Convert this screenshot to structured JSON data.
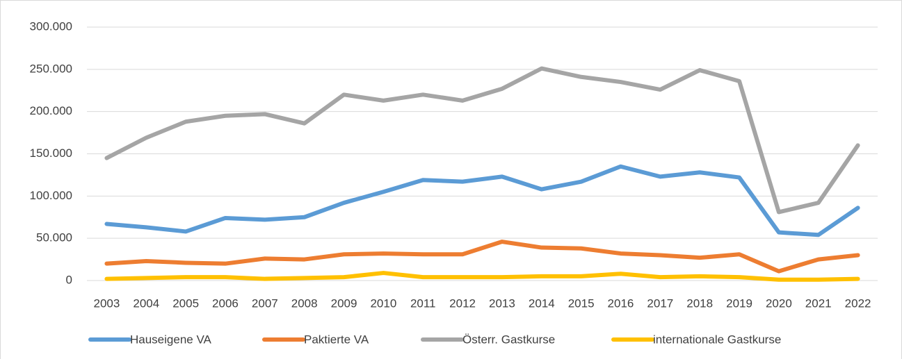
{
  "chart_data": {
    "type": "line",
    "categories": [
      "2003",
      "2004",
      "2005",
      "2006",
      "2007",
      "2008",
      "2009",
      "2010",
      "2011",
      "2012",
      "2013",
      "2014",
      "2015",
      "2016",
      "2017",
      "2018",
      "2019",
      "2020",
      "2021",
      "2022"
    ],
    "series": [
      {
        "name": "Hauseigene VA",
        "color": "#5b9bd5",
        "values": [
          67000,
          63000,
          58000,
          74000,
          72000,
          75000,
          92000,
          105000,
          119000,
          117000,
          123000,
          108000,
          117000,
          135000,
          123000,
          128000,
          122000,
          57000,
          54000,
          86000
        ]
      },
      {
        "name": "Paktierte VA",
        "color": "#ed7d31",
        "values": [
          20000,
          23000,
          21000,
          20000,
          26000,
          25000,
          31000,
          32000,
          31000,
          31000,
          46000,
          39000,
          38000,
          32000,
          30000,
          27000,
          31000,
          11000,
          25000,
          30000
        ]
      },
      {
        "name": "Österr. Gastkurse",
        "color": "#a5a5a5",
        "values": [
          145000,
          169000,
          188000,
          195000,
          197000,
          186000,
          220000,
          213000,
          220000,
          213000,
          227000,
          251000,
          241000,
          235000,
          226000,
          249000,
          236000,
          81000,
          92000,
          160000
        ]
      },
      {
        "name": "internationale Gastkurse",
        "color": "#ffc000",
        "values": [
          2000,
          3000,
          4000,
          4000,
          2000,
          3000,
          4000,
          9000,
          4000,
          4000,
          4000,
          5000,
          5000,
          8000,
          4000,
          5000,
          4000,
          1000,
          1000,
          2000
        ]
      }
    ],
    "ylim": [
      0,
      300000
    ],
    "yticks": [
      0,
      {
        "value": 50000,
        "label": "50.000"
      },
      {
        "value": 100000,
        "label": "100.000"
      },
      {
        "value": 150000,
        "label": "150.000"
      },
      {
        "value": 200000,
        "label": "200.000"
      },
      {
        "value": 250000,
        "label": "250.000"
      },
      {
        "value": 300000,
        "label": "300.000"
      }
    ],
    "grid": true,
    "legend": "bottom"
  }
}
